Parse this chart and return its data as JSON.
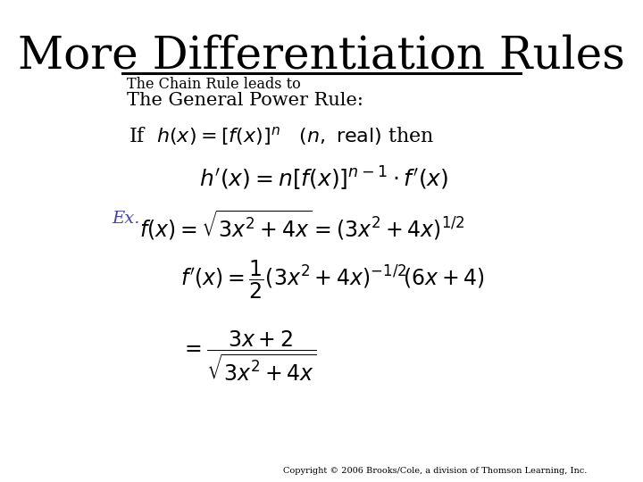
{
  "title": "More Differentiation Rules",
  "title_fontsize": 36,
  "background_color": "#ffffff",
  "text_color": "#000000",
  "ex_color": "#4444aa",
  "line1": "The Chain Rule leads to",
  "line2": "The General Power Rule:",
  "ex_label": "Ex.",
  "copyright": "Copyright © 2006 Brooks/Cole, a division of Thomson Learning, Inc.",
  "copyright_fontsize": 7
}
